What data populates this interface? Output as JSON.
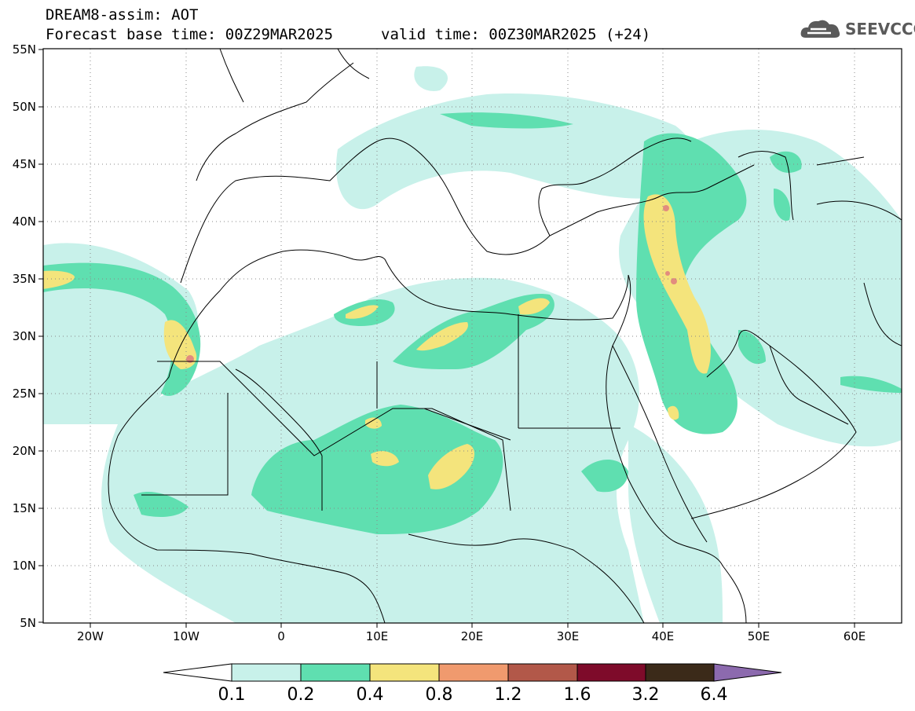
{
  "header": {
    "line1": "DREAM8-assim: AOT",
    "line2": "Forecast base time: 00Z29MAR2025",
    "valid": "valid time: 00Z30MAR2025 (+24)"
  },
  "logo": {
    "icon": "cloud-icon",
    "text": "SEEVCCC"
  },
  "lat_labels": [
    "55N",
    "50N",
    "45N",
    "40N",
    "35N",
    "30N",
    "25N",
    "20N",
    "15N",
    "10N",
    "5N"
  ],
  "lon_labels": [
    "20W",
    "10W",
    "0",
    "10E",
    "20E",
    "30E",
    "40E",
    "50E",
    "60E"
  ],
  "colorbar": {
    "labels": [
      "0.1",
      "0.2",
      "0.4",
      "0.8",
      "1.2",
      "1.6",
      "3.2",
      "6.4"
    ],
    "colors": [
      "#c8f1ea",
      "#5fdfb0",
      "#f4e47c",
      "#f09a6e",
      "#b25849",
      "#7e0b2a",
      "#3b2a19",
      "#8c6aae"
    ]
  }
}
